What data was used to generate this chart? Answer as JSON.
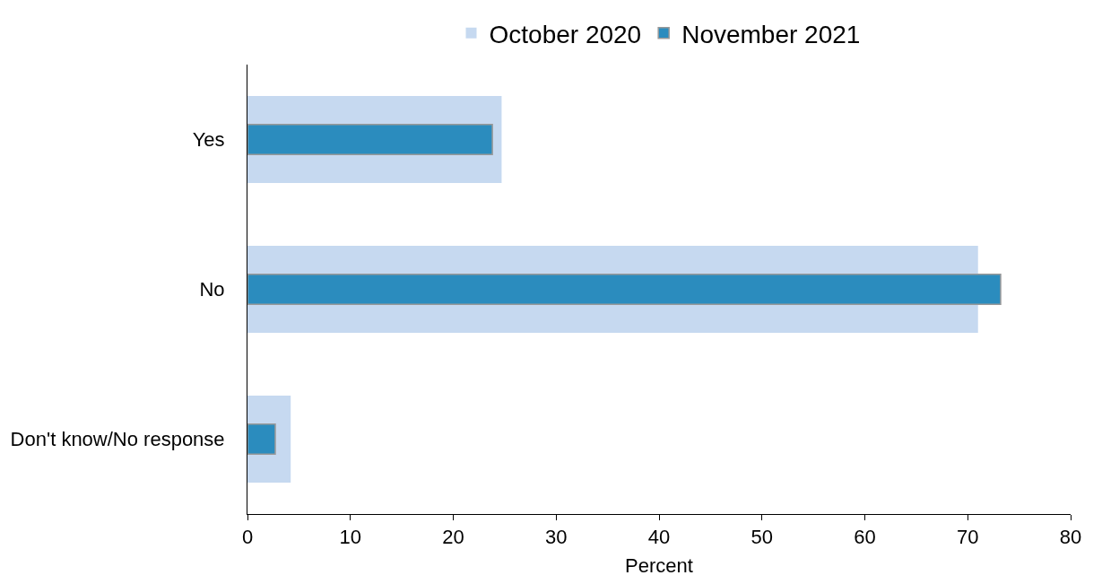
{
  "chart_data": {
    "type": "bar",
    "orientation": "horizontal",
    "xlabel": "Percent",
    "categories": [
      "Yes",
      "No",
      "Don't know/No response"
    ],
    "series": [
      {
        "name": "October 2020",
        "color": "#c6d9f0",
        "values": [
          24.7,
          71.0,
          4.2
        ]
      },
      {
        "name": "November 2021",
        "color": "#2b8cbe",
        "values": [
          23.8,
          73.2,
          2.7
        ]
      }
    ],
    "xlim": [
      0,
      80
    ],
    "xticks": [
      0,
      10,
      20,
      30,
      40,
      50,
      60,
      70,
      80
    ],
    "grid": false,
    "legend": "top"
  }
}
